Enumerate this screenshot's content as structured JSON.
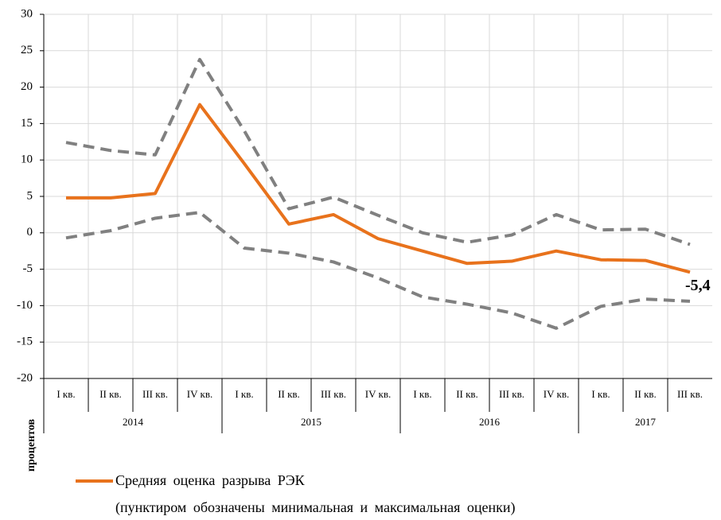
{
  "chart_data": {
    "type": "line",
    "categories": [
      "I кв.",
      "II кв.",
      "III кв.",
      "IV кв.",
      "I кв.",
      "II кв.",
      "III кв.",
      "IV кв.",
      "I кв.",
      "II кв.",
      "III кв.",
      "IV кв.",
      "I кв.",
      "II кв.",
      "III кв."
    ],
    "groups": [
      {
        "label": "2014",
        "count": 4
      },
      {
        "label": "2015",
        "count": 4
      },
      {
        "label": "2016",
        "count": 4
      },
      {
        "label": "2017",
        "count": 3
      }
    ],
    "series": [
      {
        "name": "Средняя оценка разрыва РЭК",
        "color": "#e8721c",
        "dashed": false,
        "values": [
          4.8,
          4.8,
          5.4,
          17.6,
          9.5,
          1.2,
          2.5,
          -0.8,
          -2.5,
          -4.2,
          -3.9,
          -2.5,
          -3.7,
          -3.8,
          -5.4
        ],
        "value_labels": [
          null,
          null,
          null,
          null,
          null,
          null,
          null,
          null,
          null,
          null,
          null,
          null,
          null,
          null,
          "-5,4"
        ]
      },
      {
        "color": "#808080",
        "dashed": true,
        "values": [
          12.4,
          11.3,
          10.7,
          23.8,
          14.0,
          3.3,
          4.9,
          2.4,
          0.0,
          -1.3,
          -0.3,
          2.5,
          0.4,
          0.5,
          -1.6
        ]
      },
      {
        "color": "#808080",
        "dashed": true,
        "values": [
          -0.7,
          0.3,
          2.0,
          2.8,
          -2.1,
          -2.8,
          -4.0,
          -6.2,
          -8.8,
          -9.8,
          -11.0,
          -13.1,
          -10.1,
          -9.1,
          -9.4
        ]
      }
    ],
    "ylim": [
      -20,
      30
    ],
    "yticks": [
      -20,
      -15,
      -10,
      -5,
      0,
      5,
      10,
      15,
      20,
      25,
      30
    ],
    "grid": true,
    "ylabel": "процентов",
    "legend_note": "(пунктиром обозначены минимальная и максимальная оценки)"
  }
}
